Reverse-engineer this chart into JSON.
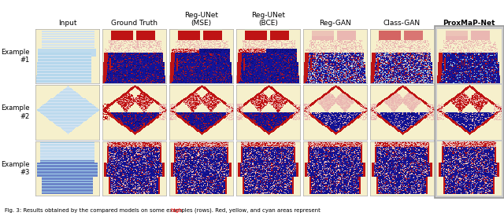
{
  "col_headers": [
    "Input",
    "Ground Truth",
    "Reg-UNet\n(MSE)",
    "Reg-UNet\n(BCE)",
    "Reg-GAN",
    "Class-GAN",
    "ProxMaP-Net"
  ],
  "row_labels": [
    "Example\n#1",
    "Example\n#2",
    "Example\n#3"
  ],
  "n_rows": 3,
  "n_cols": 7,
  "last_col_bg": "#cccccc",
  "cell_bg": "#f5f0c0",
  "outer_bg": "#ffffff",
  "header_fontsize": 6.5,
  "row_label_fontsize": 6.0,
  "figure_width": 6.4,
  "figure_height": 2.75,
  "caption": "Fig. 3: Results obtained by the compared models on some examples (rows). Red, yellow, and cyan areas represent ",
  "caption_highlight": "high",
  "caption_fontsize": 5.0
}
